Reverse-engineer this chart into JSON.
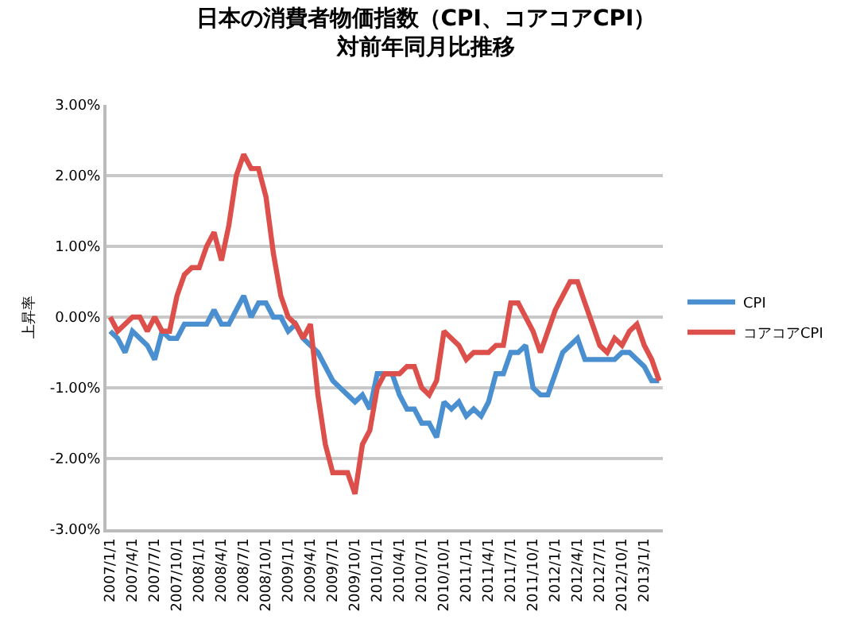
{
  "chart_data": {
    "type": "line",
    "title": "日本の消費者物価指数（CPI、コアコアCPI）",
    "subtitle": "対前年同月比推移",
    "ylabel": "上昇率",
    "categories": [
      "2007/1/1",
      null,
      null,
      "2007/4/1",
      null,
      null,
      "2007/7/1",
      null,
      null,
      "2007/10/1",
      null,
      null,
      "2008/1/1",
      null,
      null,
      "2008/4/1",
      null,
      null,
      "2008/7/1",
      null,
      null,
      "2008/10/1",
      null,
      null,
      "2009/1/1",
      null,
      null,
      "2009/4/1",
      null,
      null,
      "2009/7/1",
      null,
      null,
      "2009/10/1",
      null,
      null,
      "2010/1/1",
      null,
      null,
      "2010/4/1",
      null,
      null,
      "2010/7/1",
      null,
      null,
      "2010/10/1",
      null,
      null,
      "2011/1/1",
      null,
      null,
      "2011/4/1",
      null,
      null,
      "2011/7/1",
      null,
      null,
      "2011/10/1",
      null,
      null,
      "2012/1/1",
      null,
      null,
      "2012/4/1",
      null,
      null,
      "2012/7/1",
      null,
      null,
      "2012/10/1",
      null,
      null,
      "2013/1/1",
      null,
      null
    ],
    "series": [
      {
        "name": "CPI",
        "color": "#4a8fd0",
        "values": [
          -0.2,
          -0.3,
          -0.5,
          -0.2,
          -0.3,
          -0.4,
          -0.6,
          -0.2,
          -0.3,
          -0.3,
          -0.1,
          -0.1,
          -0.1,
          -0.1,
          0.1,
          -0.1,
          -0.1,
          0.1,
          0.3,
          0.0,
          0.2,
          0.2,
          0.0,
          0.0,
          -0.2,
          -0.1,
          -0.3,
          -0.4,
          -0.5,
          -0.7,
          -0.9,
          -1.0,
          -1.1,
          -1.2,
          -1.1,
          -1.3,
          -0.8,
          -0.8,
          -0.8,
          -1.1,
          -1.3,
          -1.3,
          -1.5,
          -1.5,
          -1.7,
          -1.2,
          -1.3,
          -1.2,
          -1.4,
          -1.3,
          -1.4,
          -1.2,
          -0.8,
          -0.8,
          -0.5,
          -0.5,
          -0.4,
          -1.0,
          -1.1,
          -1.1,
          -0.8,
          -0.5,
          -0.4,
          -0.3,
          -0.6,
          -0.6,
          -0.6,
          -0.6,
          -0.6,
          -0.5,
          -0.5,
          -0.6,
          -0.7,
          -0.9,
          -0.9
        ]
      },
      {
        "name": "コアコアCPI",
        "color": "#dc4f4a",
        "values": [
          0.0,
          -0.2,
          -0.1,
          0.0,
          0.0,
          -0.2,
          0.0,
          -0.2,
          -0.2,
          0.3,
          0.6,
          0.7,
          0.7,
          1.0,
          1.2,
          0.8,
          1.3,
          2.0,
          2.3,
          2.1,
          2.1,
          1.7,
          0.9,
          0.3,
          0.0,
          -0.1,
          -0.3,
          -0.1,
          -1.1,
          -1.8,
          -2.2,
          -2.2,
          -2.2,
          -2.5,
          -1.8,
          -1.6,
          -1.0,
          -0.8,
          -0.8,
          -0.8,
          -0.7,
          -0.7,
          -1.0,
          -1.1,
          -0.9,
          -0.2,
          -0.3,
          -0.4,
          -0.6,
          -0.5,
          -0.5,
          -0.5,
          -0.4,
          -0.4,
          0.2,
          0.2,
          0.0,
          -0.2,
          -0.5,
          -0.2,
          0.1,
          0.3,
          0.5,
          0.5,
          0.2,
          -0.1,
          -0.4,
          -0.5,
          -0.3,
          -0.4,
          -0.2,
          -0.1,
          -0.4,
          -0.6,
          -0.9
        ]
      }
    ],
    "ylim": [
      -3,
      3
    ],
    "yticks": [
      {
        "value": -3,
        "label": "-3.00%"
      },
      {
        "value": -2,
        "label": "-2.00%"
      },
      {
        "value": -1,
        "label": "-1.00%"
      },
      {
        "value": 0,
        "label": "0.00%"
      },
      {
        "value": 1,
        "label": "1.00%"
      },
      {
        "value": 2,
        "label": "2.00%"
      },
      {
        "value": 3,
        "label": "3.00%"
      }
    ],
    "grid": "y",
    "legend": "right",
    "marker": "none",
    "line_style": "solid"
  }
}
